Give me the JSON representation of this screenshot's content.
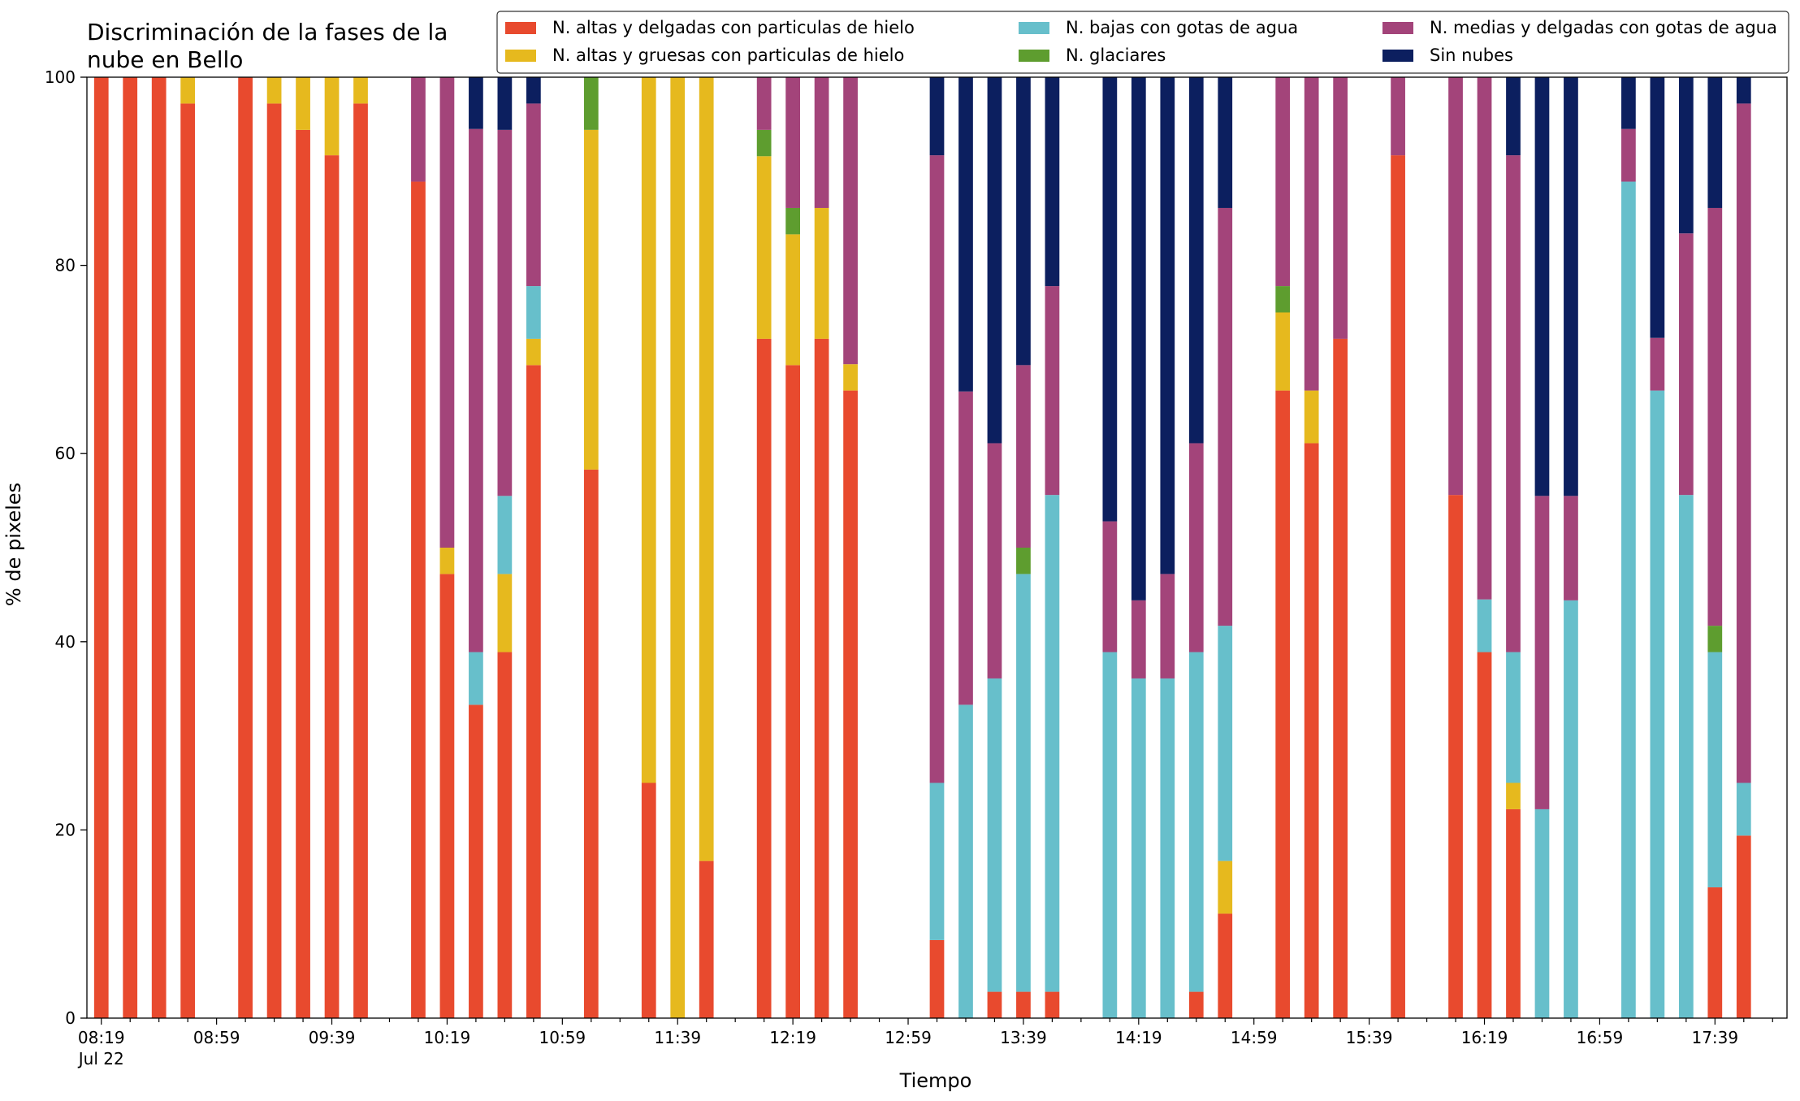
{
  "chart_data": {
    "type": "bar",
    "stacked": true,
    "title": "Discriminación de la fases de la nube en Bello",
    "title_lines": [
      "Discriminación de la fases de la",
      "nube en Bello"
    ],
    "xlabel": "Tiempo",
    "ylabel": "% de pixeles",
    "ylim": [
      0,
      100
    ],
    "yticks": [
      0,
      20,
      40,
      60,
      80,
      100
    ],
    "xtick_labels": [
      "08:19",
      "08:59",
      "09:39",
      "10:19",
      "10:59",
      "11:39",
      "12:19",
      "12:59",
      "13:39",
      "14:19",
      "14:59",
      "15:39",
      "16:19",
      "16:59",
      "17:39"
    ],
    "xtick_sublabel": "Jul 22",
    "x_start": "08:19",
    "x_end": "17:59",
    "x_step_minutes": 10,
    "legend_position": "top-right",
    "legend_columns": 3,
    "grid": false,
    "series_order": [
      "altas_delgadas",
      "altas_gruesas",
      "bajas_agua",
      "glaciares",
      "medias_agua",
      "sin_nubes"
    ],
    "series": [
      {
        "key": "altas_delgadas",
        "name": "N. altas y delgadas con particulas de hielo",
        "color": "#e84a2e"
      },
      {
        "key": "altas_gruesas",
        "name": "N. altas y gruesas con particulas de hielo",
        "color": "#e6b91e"
      },
      {
        "key": "bajas_agua",
        "name": "N. bajas con gotas de agua",
        "color": "#67bfcb"
      },
      {
        "key": "glaciares",
        "name": "N. glaciares",
        "color": "#5e9d2f"
      },
      {
        "key": "medias_agua",
        "name": "N. medias y delgadas con gotas de agua",
        "color": "#a3447a"
      },
      {
        "key": "sin_nubes",
        "name": "Sin nubes",
        "color": "#0c1f5f"
      }
    ],
    "legend_layout": [
      "altas_delgadas",
      "bajas_agua",
      "medias_agua",
      "altas_gruesas",
      "glaciares",
      "sin_nubes"
    ],
    "bars": [
      {
        "time": "08:19",
        "values": [
          100,
          0,
          0,
          0,
          0,
          0
        ]
      },
      {
        "time": "08:29",
        "values": [
          100,
          0,
          0,
          0,
          0,
          0
        ]
      },
      {
        "time": "08:39",
        "values": [
          100,
          0,
          0,
          0,
          0,
          0
        ]
      },
      {
        "time": "08:49",
        "values": [
          97.2,
          2.8,
          0,
          0,
          0,
          0
        ]
      },
      {
        "time": "09:09",
        "values": [
          100,
          0,
          0,
          0,
          0,
          0
        ]
      },
      {
        "time": "09:19",
        "values": [
          97.2,
          2.8,
          0,
          0,
          0,
          0
        ]
      },
      {
        "time": "09:29",
        "values": [
          94.4,
          5.6,
          0,
          0,
          0,
          0
        ]
      },
      {
        "time": "09:39",
        "values": [
          91.7,
          8.3,
          0,
          0,
          0,
          0
        ]
      },
      {
        "time": "09:49",
        "values": [
          97.2,
          2.8,
          0,
          0,
          0,
          0
        ]
      },
      {
        "time": "10:09",
        "values": [
          88.9,
          0,
          0,
          0,
          11.1,
          0
        ]
      },
      {
        "time": "10:19",
        "values": [
          47.2,
          2.8,
          0,
          0,
          50,
          0
        ]
      },
      {
        "time": "10:29",
        "values": [
          33.3,
          0,
          5.6,
          0,
          55.6,
          5.5
        ]
      },
      {
        "time": "10:39",
        "values": [
          38.9,
          8.3,
          8.3,
          0,
          38.9,
          5.6
        ]
      },
      {
        "time": "10:49",
        "values": [
          69.4,
          2.8,
          5.6,
          0,
          19.4,
          2.8
        ]
      },
      {
        "time": "11:09",
        "values": [
          58.3,
          36.1,
          0,
          5.6,
          0,
          0
        ]
      },
      {
        "time": "11:29",
        "values": [
          25,
          75,
          0,
          0,
          0,
          0
        ]
      },
      {
        "time": "11:39",
        "values": [
          0,
          100,
          0,
          0,
          0,
          0
        ]
      },
      {
        "time": "11:49",
        "values": [
          16.7,
          83.3,
          0,
          0,
          0,
          0
        ]
      },
      {
        "time": "12:09",
        "values": [
          72.2,
          19.4,
          0,
          2.8,
          5.6,
          0
        ]
      },
      {
        "time": "12:19",
        "values": [
          69.4,
          13.9,
          0,
          2.8,
          13.9,
          0
        ]
      },
      {
        "time": "12:29",
        "values": [
          72.2,
          13.9,
          0,
          0,
          13.9,
          0
        ]
      },
      {
        "time": "12:39",
        "values": [
          66.7,
          2.8,
          0,
          0,
          30.5,
          0
        ]
      },
      {
        "time": "13:09",
        "values": [
          8.3,
          0,
          16.7,
          0,
          66.7,
          8.3
        ]
      },
      {
        "time": "13:19",
        "values": [
          0,
          0,
          33.3,
          0,
          33.3,
          33.4
        ]
      },
      {
        "time": "13:29",
        "values": [
          2.8,
          0,
          33.3,
          0,
          25,
          38.9
        ]
      },
      {
        "time": "13:39",
        "values": [
          2.8,
          0,
          44.4,
          2.8,
          19.4,
          30.6
        ]
      },
      {
        "time": "13:49",
        "values": [
          2.8,
          0,
          52.8,
          0,
          22.2,
          22.2
        ]
      },
      {
        "time": "14:09",
        "values": [
          0,
          0,
          38.9,
          0,
          13.9,
          47.2
        ]
      },
      {
        "time": "14:19",
        "values": [
          0,
          0,
          36.1,
          0,
          8.3,
          55.6
        ]
      },
      {
        "time": "14:29",
        "values": [
          0,
          0,
          36.1,
          0,
          11.1,
          52.8
        ]
      },
      {
        "time": "14:39",
        "values": [
          2.8,
          0,
          36.1,
          0,
          22.2,
          38.9
        ]
      },
      {
        "time": "14:49",
        "values": [
          11.1,
          5.6,
          25,
          0,
          44.4,
          13.9
        ]
      },
      {
        "time": "15:09",
        "values": [
          66.7,
          8.3,
          0,
          2.8,
          22.2,
          0
        ]
      },
      {
        "time": "15:19",
        "values": [
          61.1,
          5.6,
          0,
          0,
          33.3,
          0
        ]
      },
      {
        "time": "15:29",
        "values": [
          72.2,
          0,
          0,
          0,
          27.8,
          0
        ]
      },
      {
        "time": "15:49",
        "values": [
          91.7,
          0,
          0,
          0,
          8.3,
          0
        ]
      },
      {
        "time": "16:09",
        "values": [
          55.6,
          0,
          0,
          0,
          44.4,
          0
        ]
      },
      {
        "time": "16:19",
        "values": [
          38.9,
          0,
          5.6,
          0,
          55.5,
          0
        ]
      },
      {
        "time": "16:29",
        "values": [
          22.2,
          2.8,
          13.9,
          0,
          52.8,
          8.3
        ]
      },
      {
        "time": "16:39",
        "values": [
          0,
          0,
          22.2,
          0,
          33.3,
          44.5
        ]
      },
      {
        "time": "16:49",
        "values": [
          0,
          0,
          44.4,
          0,
          11.1,
          44.5
        ]
      },
      {
        "time": "17:09",
        "values": [
          0,
          0,
          88.9,
          0,
          5.6,
          5.5
        ]
      },
      {
        "time": "17:19",
        "values": [
          0,
          0,
          66.7,
          0,
          5.6,
          27.7
        ]
      },
      {
        "time": "17:29",
        "values": [
          0,
          0,
          55.6,
          0,
          27.8,
          16.6
        ]
      },
      {
        "time": "17:39",
        "values": [
          13.9,
          0,
          25,
          2.8,
          44.4,
          13.9
        ]
      },
      {
        "time": "17:49",
        "values": [
          19.4,
          0,
          5.6,
          0,
          72.2,
          2.8
        ]
      }
    ]
  }
}
